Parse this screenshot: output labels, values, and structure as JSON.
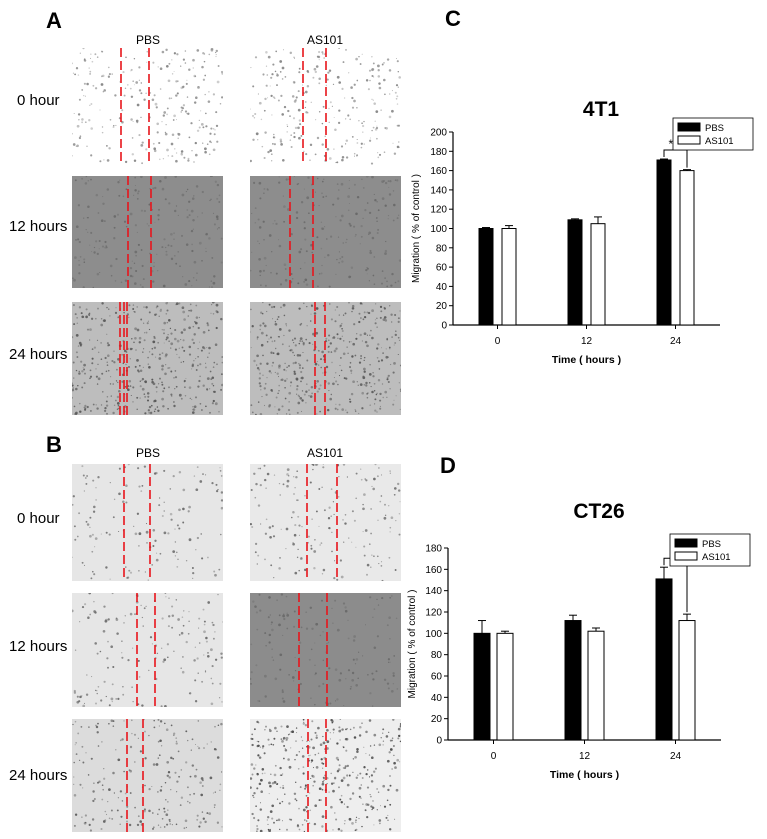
{
  "panels": {
    "A": {
      "letter": "A",
      "columns": [
        "PBS",
        "AS101"
      ],
      "rows": [
        "0  hour",
        "12 hours",
        "24 hours"
      ]
    },
    "B": {
      "letter": "B",
      "columns": [
        "PBS",
        "AS101"
      ],
      "rows": [
        "0  hour",
        "12 hours",
        "24 hours"
      ]
    }
  },
  "chart_data": [
    {
      "panel_letter": "C",
      "type": "bar",
      "title": "4T1",
      "xlabel": "Time ( hours )",
      "ylabel": "Migration ( % of control )",
      "categories": [
        "0",
        "12",
        "24"
      ],
      "ylim": [
        0,
        200
      ],
      "yticks": [
        0,
        20,
        40,
        60,
        80,
        100,
        120,
        140,
        160,
        180,
        200
      ],
      "series": [
        {
          "name": "PBS",
          "values": [
            100,
            109,
            171
          ],
          "errors": [
            1,
            1,
            1
          ],
          "color": "#000000"
        },
        {
          "name": "AS101",
          "values": [
            100,
            105,
            160
          ],
          "errors": [
            3,
            7,
            1
          ],
          "color": "#ffffff"
        }
      ],
      "significance": {
        "category": "24",
        "label": "***"
      },
      "legend_position": "top-right",
      "grid": false
    },
    {
      "panel_letter": "D",
      "type": "bar",
      "title": "CT26",
      "xlabel": "Time ( hours )",
      "ylabel": "Migration ( % of control )",
      "categories": [
        "0",
        "12",
        "24"
      ],
      "ylim": [
        0,
        180
      ],
      "yticks": [
        0,
        20,
        40,
        60,
        80,
        100,
        120,
        140,
        160,
        180
      ],
      "series": [
        {
          "name": "PBS",
          "values": [
            100,
            112,
            151
          ],
          "errors": [
            12,
            5,
            11
          ],
          "color": "#000000"
        },
        {
          "name": "AS101",
          "values": [
            100,
            102,
            112
          ],
          "errors": [
            2,
            3,
            6
          ],
          "color": "#ffffff"
        }
      ],
      "significance": {
        "category": "24",
        "label": "**"
      },
      "legend_position": "top-right",
      "grid": false
    }
  ]
}
